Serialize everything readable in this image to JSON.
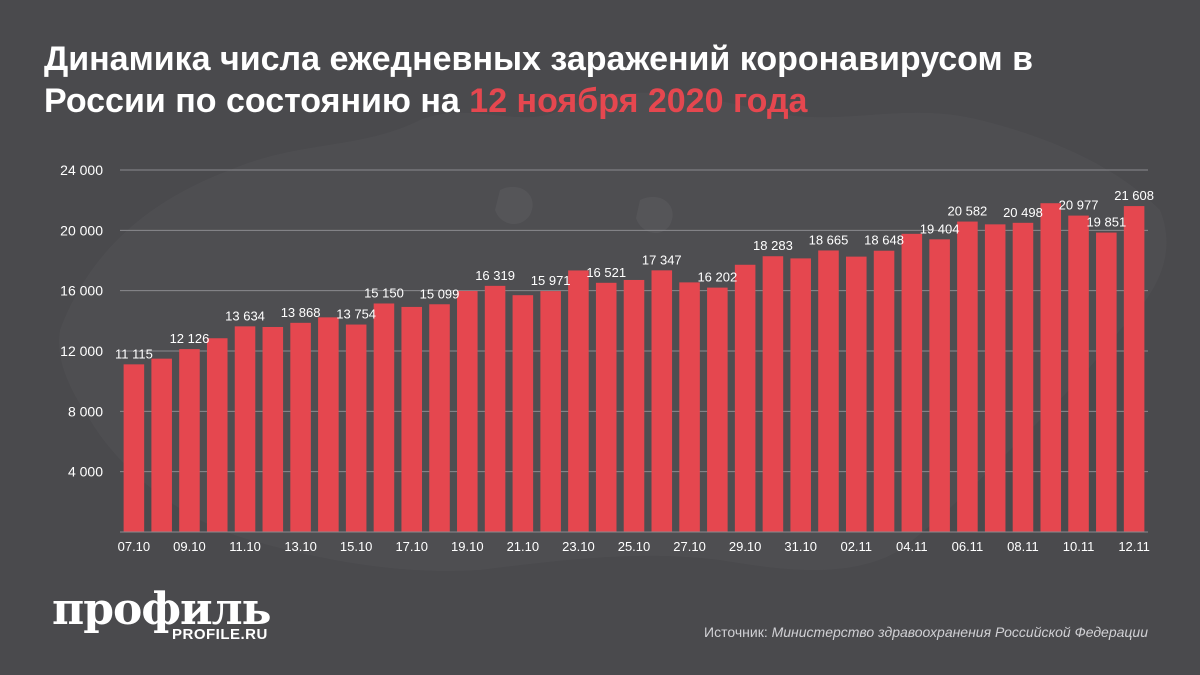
{
  "header": {
    "title_main": "Динамика числа ежедневных заражений коронавирусом в России по состоянию на",
    "title_date": "12 ноября 2020 года"
  },
  "footer": {
    "logo_text": "профиль",
    "logo_url_text": "PROFILE.RU",
    "source_label": "Источник:",
    "source_text": "Министерство здравоохранения Российской Федерации"
  },
  "colors": {
    "background": "#4a4a4d",
    "bar": "#e5474f",
    "accent": "#e5474f",
    "text": "#ffffff"
  },
  "chart_data": {
    "type": "bar",
    "ylim": [
      0,
      24000
    ],
    "yticks": [
      4000,
      8000,
      12000,
      16000,
      20000,
      24000
    ],
    "ytick_labels": [
      "4 000",
      "8 000",
      "12 000",
      "16 000",
      "20 000",
      "24 000"
    ],
    "grid": true,
    "categories": [
      "07.10",
      "08.10",
      "09.10",
      "10.10",
      "11.10",
      "12.10",
      "13.10",
      "14.10",
      "15.10",
      "16.10",
      "17.10",
      "18.10",
      "19.10",
      "20.10",
      "21.10",
      "22.10",
      "23.10",
      "24.10",
      "25.10",
      "26.10",
      "27.10",
      "28.10",
      "29.10",
      "30.10",
      "31.10",
      "01.11",
      "02.11",
      "03.11",
      "04.11",
      "05.11",
      "06.11",
      "07.11",
      "08.11",
      "09.11",
      "10.11",
      "11.11",
      "12.11"
    ],
    "xtick_labels": [
      "07.10",
      "",
      "09.10",
      "",
      "11.10",
      "",
      "13.10",
      "",
      "15.10",
      "",
      "17.10",
      "",
      "19.10",
      "",
      "21.10",
      "",
      "23.10",
      "",
      "25.10",
      "",
      "27.10",
      "",
      "29.10",
      "",
      "31.10",
      "",
      "02.11",
      "",
      "04.11",
      "",
      "06.11",
      "",
      "08.11",
      "",
      "10.11",
      "",
      "12.11"
    ],
    "values": [
      11115,
      11493,
      12126,
      12846,
      13634,
      13592,
      13868,
      14231,
      13754,
      15150,
      14922,
      15099,
      15982,
      16319,
      15700,
      15971,
      17340,
      16521,
      16710,
      17347,
      16550,
      16202,
      17717,
      18283,
      18140,
      18665,
      18257,
      18648,
      19768,
      19404,
      20582,
      20396,
      20498,
      21798,
      20977,
      19851,
      21608
    ],
    "data_labels": [
      "11 115",
      "",
      "12 126",
      "",
      "13 634",
      "",
      "13 868",
      "",
      "13 754",
      "15 150",
      "",
      "15 099",
      "",
      "16 319",
      "",
      "15 971",
      "",
      "16 521",
      "",
      "17 347",
      "",
      "16 202",
      "",
      "18 283",
      "",
      "18 665",
      "",
      "18 648",
      "",
      "19 404",
      "20 582",
      "",
      "20 498",
      "",
      "20 977",
      "19 851",
      "21 608"
    ]
  }
}
